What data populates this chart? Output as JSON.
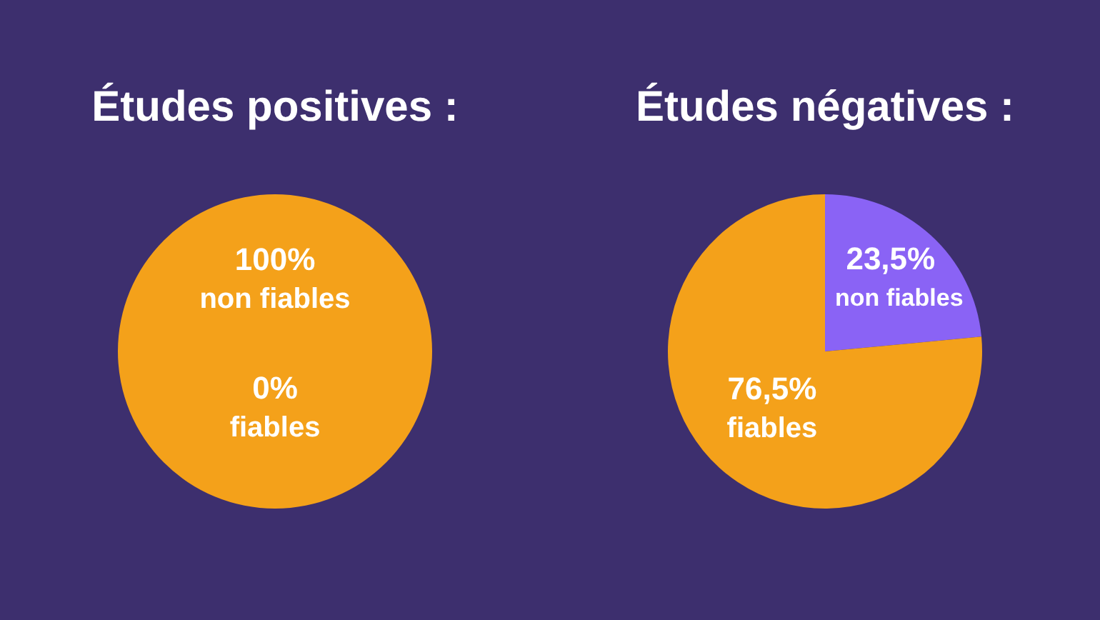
{
  "chart_data": [
    {
      "type": "pie",
      "title": "Études positives :",
      "categories": [
        "non fiables",
        "fiables"
      ],
      "values": [
        100,
        0
      ],
      "value_labels": [
        "100%",
        "0%"
      ],
      "colors": [
        "#f4a11a",
        "#8a63f5"
      ],
      "legend": false
    },
    {
      "type": "pie",
      "title": "Études négatives :",
      "categories": [
        "non fiables",
        "fiables"
      ],
      "values": [
        23.5,
        76.5
      ],
      "value_labels": [
        "23,5%",
        "76,5%"
      ],
      "colors": [
        "#8a63f5",
        "#f4a11a"
      ],
      "legend": false
    }
  ]
}
